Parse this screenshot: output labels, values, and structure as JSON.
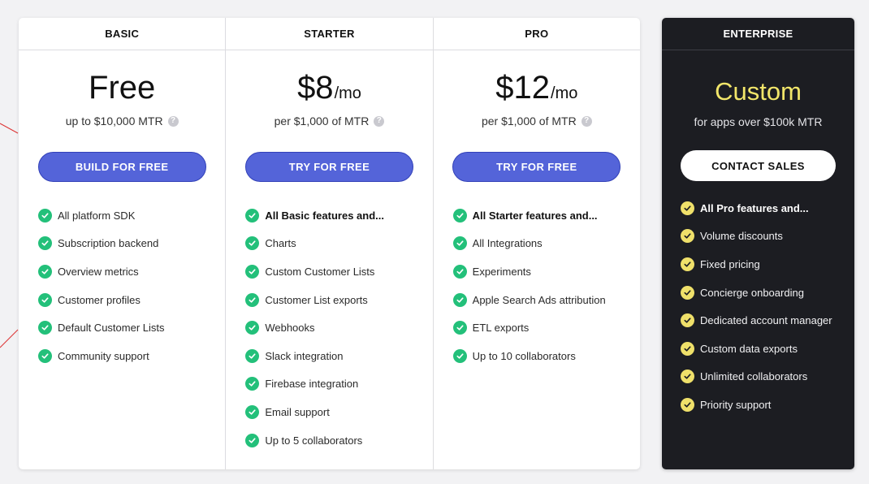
{
  "colors": {
    "accent_button": "#5464d9",
    "check_green": "#23c07a",
    "enterprise_bg": "#1c1d22",
    "enterprise_accent": "#f2e66a"
  },
  "plans": [
    {
      "name": "BASIC",
      "price": "Free",
      "unit": "",
      "note": "up to $10,000 MTR",
      "cta": "BUILD FOR FREE",
      "features": [
        "All platform SDK",
        "Subscription backend",
        "Overview metrics",
        "Customer profiles",
        "Default Customer Lists",
        "Community support"
      ]
    },
    {
      "name": "STARTER",
      "price": "$8",
      "unit": "/mo",
      "note": "per $1,000 of MTR",
      "cta": "TRY FOR FREE",
      "features": [
        "All Basic features and...",
        "Charts",
        "Custom Customer Lists",
        "Customer List exports",
        "Webhooks",
        "Slack integration",
        "Firebase integration",
        "Email support",
        "Up to 5 collaborators"
      ]
    },
    {
      "name": "PRO",
      "price": "$12",
      "unit": "/mo",
      "note": "per $1,000 of MTR",
      "cta": "TRY FOR FREE",
      "features": [
        "All Starter features and...",
        "All Integrations",
        "Experiments",
        "Apple Search Ads attribution",
        "ETL exports",
        "Up to 10 collaborators"
      ]
    }
  ],
  "enterprise": {
    "name": "ENTERPRISE",
    "price": "Custom",
    "note": "for apps over $100k MTR",
    "cta": "CONTACT SALES",
    "features": [
      "All Pro features and...",
      "Volume discounts",
      "Fixed pricing",
      "Concierge onboarding",
      "Dedicated account manager",
      "Custom data exports",
      "Unlimited collaborators",
      "Priority support"
    ]
  },
  "help_glyph": "?"
}
